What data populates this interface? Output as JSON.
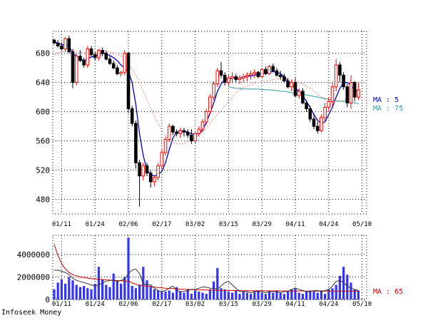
{
  "credit": "Infoseek Money",
  "chart_data": [
    {
      "type": "candlestick",
      "panel": "price",
      "ylim": [
        460,
        710
      ],
      "yticks": [
        480,
        520,
        560,
        600,
        640,
        680
      ],
      "xticks": [
        {
          "label": "01/11",
          "index": 2
        },
        {
          "label": "01/24",
          "index": 11
        },
        {
          "label": "02/06",
          "index": 20
        },
        {
          "label": "02/17",
          "index": 29
        },
        {
          "label": "03/02",
          "index": 38
        },
        {
          "label": "03/15",
          "index": 47
        },
        {
          "label": "03/29",
          "index": 56
        },
        {
          "label": "04/11",
          "index": 65
        },
        {
          "label": "04/24",
          "index": 74
        },
        {
          "label": "05/10",
          "index": 83
        }
      ],
      "grid": true,
      "up_color": "#ff0000",
      "down_color": "#000000",
      "candles": [
        [
          698,
          700,
          692,
          694
        ],
        [
          694,
          698,
          688,
          690
        ],
        [
          690,
          695,
          684,
          686
        ],
        [
          686,
          702,
          682,
          700
        ],
        [
          700,
          704,
          680,
          682
        ],
        [
          682,
          686,
          632,
          640
        ],
        [
          640,
          680,
          636,
          676
        ],
        [
          676,
          684,
          668,
          670
        ],
        [
          670,
          674,
          660,
          664
        ],
        [
          664,
          690,
          660,
          686
        ],
        [
          686,
          690,
          676,
          678
        ],
        [
          678,
          682,
          670,
          674
        ],
        [
          674,
          686,
          670,
          684
        ],
        [
          684,
          688,
          676,
          680
        ],
        [
          680,
          684,
          670,
          672
        ],
        [
          672,
          676,
          664,
          666
        ],
        [
          666,
          670,
          658,
          660
        ],
        [
          660,
          664,
          650,
          652
        ],
        [
          652,
          656,
          648,
          654
        ],
        [
          654,
          684,
          650,
          680
        ],
        [
          680,
          682,
          598,
          604
        ],
        [
          604,
          608,
          580,
          584
        ],
        [
          584,
          588,
          522,
          530
        ],
        [
          530,
          534,
          470,
          512
        ],
        [
          512,
          530,
          506,
          526
        ],
        [
          526,
          530,
          512,
          516
        ],
        [
          516,
          520,
          496,
          504
        ],
        [
          504,
          512,
          498,
          510
        ],
        [
          510,
          530,
          506,
          526
        ],
        [
          526,
          548,
          522,
          544
        ],
        [
          544,
          566,
          540,
          562
        ],
        [
          562,
          584,
          558,
          580
        ],
        [
          580,
          582,
          568,
          572
        ],
        [
          572,
          576,
          566,
          570
        ],
        [
          570,
          578,
          564,
          574
        ],
        [
          574,
          578,
          566,
          572
        ],
        [
          572,
          576,
          564,
          568
        ],
        [
          568,
          576,
          556,
          560
        ],
        [
          560,
          572,
          556,
          570
        ],
        [
          570,
          580,
          566,
          576
        ],
        [
          576,
          590,
          572,
          586
        ],
        [
          586,
          604,
          582,
          600
        ],
        [
          600,
          624,
          596,
          620
        ],
        [
          620,
          642,
          616,
          638
        ],
        [
          638,
          660,
          634,
          656
        ],
        [
          656,
          668,
          646,
          650
        ],
        [
          650,
          654,
          636,
          640
        ],
        [
          640,
          650,
          636,
          646
        ],
        [
          646,
          654,
          640,
          648
        ],
        [
          648,
          652,
          640,
          644
        ],
        [
          644,
          650,
          638,
          646
        ],
        [
          646,
          652,
          640,
          648
        ],
        [
          648,
          654,
          642,
          650
        ],
        [
          650,
          656,
          644,
          652
        ],
        [
          652,
          658,
          646,
          654
        ],
        [
          654,
          656,
          646,
          648
        ],
        [
          648,
          660,
          646,
          658
        ],
        [
          658,
          662,
          650,
          652
        ],
        [
          652,
          664,
          650,
          662
        ],
        [
          662,
          666,
          654,
          656
        ],
        [
          656,
          660,
          648,
          650
        ],
        [
          650,
          656,
          644,
          648
        ],
        [
          648,
          652,
          640,
          642
        ],
        [
          642,
          646,
          632,
          634
        ],
        [
          634,
          644,
          628,
          640
        ],
        [
          640,
          646,
          620,
          622
        ],
        [
          622,
          632,
          618,
          628
        ],
        [
          628,
          632,
          610,
          612
        ],
        [
          612,
          616,
          600,
          604
        ],
        [
          604,
          608,
          586,
          590
        ],
        [
          590,
          598,
          576,
          580
        ],
        [
          580,
          586,
          570,
          574
        ],
        [
          574,
          596,
          572,
          592
        ],
        [
          592,
          612,
          586,
          606
        ],
        [
          606,
          620,
          600,
          614
        ],
        [
          614,
          640,
          606,
          634
        ],
        [
          634,
          672,
          628,
          664
        ],
        [
          664,
          668,
          640,
          650
        ],
        [
          650,
          654,
          630,
          634
        ],
        [
          634,
          638,
          606,
          612
        ],
        [
          612,
          650,
          604,
          640
        ],
        [
          640,
          642,
          614,
          620
        ],
        [
          620,
          640,
          616,
          630
        ]
      ],
      "series": [
        {
          "name": "MA : 5",
          "color": "#0000cc",
          "style": "solid",
          "values": [
            696,
            694,
            692,
            691,
            690,
            680,
            676,
            673,
            670,
            672,
            675,
            676,
            678,
            680,
            679,
            677,
            674,
            670,
            664,
            660,
            655,
            640,
            610,
            570,
            540,
            520,
            514,
            512,
            514,
            518,
            530,
            548,
            564,
            572,
            574,
            574,
            572,
            570,
            569,
            570,
            575,
            585,
            598,
            612,
            628,
            638,
            644,
            645,
            646,
            646,
            646,
            647,
            648,
            649,
            650,
            651,
            652,
            653,
            654,
            655,
            654,
            652,
            648,
            642,
            638,
            632,
            628,
            622,
            614,
            606,
            596,
            588,
            584,
            586,
            596,
            606,
            620,
            632,
            640,
            640,
            636,
            630,
            628
          ]
        },
        {
          "name": "",
          "color": "#ff8080",
          "style": "dashed",
          "values": [
            678,
            680,
            682,
            683,
            684,
            684,
            683,
            682,
            681,
            680,
            679,
            679,
            680,
            681,
            682,
            682,
            681,
            679,
            676,
            672,
            666,
            658,
            650,
            640,
            628,
            616,
            605,
            594,
            584,
            575,
            568,
            562,
            558,
            556,
            556,
            557,
            559,
            562,
            565,
            568,
            572,
            578,
            584,
            590,
            596,
            602,
            608,
            614,
            620,
            626,
            630,
            633,
            635,
            637,
            639,
            640,
            641,
            642,
            643,
            644,
            645,
            645,
            645,
            644,
            643,
            642,
            640,
            638,
            635,
            632,
            628,
            624,
            620,
            616,
            614,
            613,
            614,
            615,
            616,
            618,
            620,
            622,
            624
          ]
        },
        {
          "name": "MA : 75",
          "color": "#339999",
          "style": "solid",
          "start": 47,
          "values": [
            634,
            633,
            632,
            632,
            631,
            631,
            631,
            631,
            631,
            630,
            630,
            630,
            629,
            629,
            628,
            628,
            627,
            626,
            625,
            625,
            624,
            623,
            622,
            621,
            620,
            619,
            618,
            617,
            616,
            615,
            614,
            614,
            613,
            612,
            612,
            611
          ]
        }
      ]
    },
    {
      "type": "bar",
      "panel": "volume",
      "ylim": [
        0,
        5700000
      ],
      "yticks": [
        0,
        2000000,
        4000000
      ],
      "ytick_labels": [
        "0",
        "2000000",
        "4000000"
      ],
      "bar_color": "#3333ff",
      "values": [
        900000,
        1500000,
        1800000,
        1400000,
        2000000,
        1700000,
        1300000,
        1100000,
        1200000,
        1000000,
        900000,
        1400000,
        2900000,
        1800000,
        1300000,
        1100000,
        2300000,
        1600000,
        1400000,
        2000000,
        5500000,
        1200000,
        1000000,
        1300000,
        2900000,
        1700000,
        1200000,
        900000,
        800000,
        700000,
        700000,
        800000,
        600000,
        1100000,
        700000,
        600000,
        900000,
        500000,
        800000,
        700000,
        600000,
        500000,
        900000,
        1600000,
        2800000,
        1000000,
        900000,
        700000,
        600000,
        800000,
        500000,
        700000,
        600000,
        500000,
        700000,
        800000,
        600000,
        500000,
        700000,
        600000,
        800000,
        600000,
        500000,
        700000,
        900000,
        1000000,
        600000,
        500000,
        700000,
        800000,
        700000,
        600000,
        800000,
        500000,
        900000,
        1000000,
        1300000,
        2100000,
        2900000,
        2200000,
        1500000,
        900000,
        800000
      ],
      "series": [
        {
          "name": "MA : 65",
          "color": "#cc0000",
          "values": [
            4900000,
            3900000,
            3200000,
            2700000,
            2400000,
            2200000,
            2100000,
            2000000,
            1950000,
            1900000,
            1850000,
            1800000,
            1780000,
            1760000,
            1740000,
            1720000,
            1700000,
            1680000,
            1660000,
            1640000,
            1620000,
            1480000,
            1360000,
            1280000,
            1220000,
            1180000,
            1140000,
            1100000,
            1060000,
            1030000,
            1000000,
            980000,
            960000,
            940000,
            920000,
            900000,
            890000,
            880000,
            870000,
            860000,
            850000,
            840000,
            830000,
            820000,
            815000,
            810000,
            805000,
            800000,
            795000,
            790000,
            785000,
            780000,
            778000,
            775000,
            772000,
            770000,
            768000,
            766000,
            764000,
            762000,
            760000,
            758000,
            756000,
            755000,
            754000,
            753000,
            752000,
            751000,
            750000,
            750000,
            749000,
            749000,
            749000,
            748000,
            748000,
            748000,
            748000,
            748000,
            748000,
            748000,
            748000,
            748000,
            748000
          ]
        },
        {
          "name": "",
          "color": "#333333",
          "values": [
            2600000,
            2600000,
            2500000,
            2400000,
            2200000,
            1900000,
            1700000,
            1600000,
            1500000,
            1400000,
            1300000,
            1200000,
            1300000,
            1500000,
            1600000,
            1700000,
            1700000,
            1600000,
            1700000,
            1800000,
            2300000,
            2600000,
            2700000,
            2300000,
            1400000,
            1300000,
            1300000,
            1000000,
            800000,
            700000,
            800000,
            1000000,
            1200000,
            800000,
            700000,
            700000,
            800000,
            900000,
            900000,
            1000000,
            1100000,
            1100000,
            1000000,
            1000000,
            900000,
            1200000,
            1500000,
            1600000,
            1300000,
            1000000,
            700000,
            700000,
            700000,
            600000,
            700000,
            700000,
            700000,
            600000,
            700000,
            700000,
            700000,
            600000,
            700000,
            700000,
            900000,
            1000000,
            900000,
            800000,
            700000,
            700000,
            800000,
            800000,
            700000,
            800000,
            900000,
            1200000,
            1600000,
            1700000,
            1500000,
            1200000,
            1000000,
            900000,
            800000
          ]
        }
      ]
    }
  ]
}
